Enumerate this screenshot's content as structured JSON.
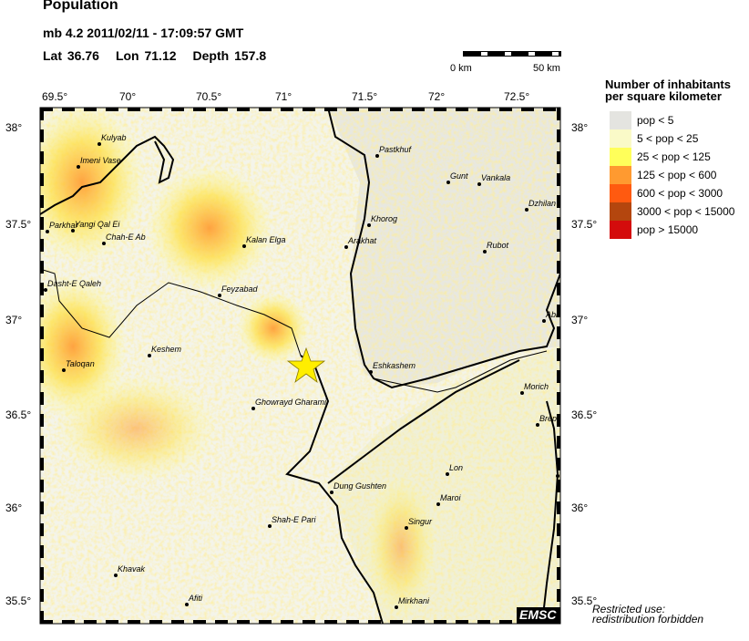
{
  "header": {
    "title": "Population",
    "event": "mb 4.2  2011/02/11 - 17:09:57 GMT",
    "lat": "Lat 36.76",
    "lon": "Lon  71.12",
    "depth": "Depth 157.8"
  },
  "scale_bar": {
    "start": "0 km",
    "end": "50 km"
  },
  "axes": {
    "lon_ticks": [
      "69.5°",
      "70°",
      "70.5°",
      "71°",
      "71.5°",
      "72°",
      "72.5°"
    ],
    "lat_ticks": [
      "38°",
      "37.5°",
      "37°",
      "36.5°",
      "36°",
      "35.5°"
    ]
  },
  "legend": {
    "title_line1": "Number of inhabitants",
    "title_line2": "per square kilometer",
    "items": [
      {
        "label": "pop < 5",
        "color": "#e4e4e0"
      },
      {
        "label": "5 < pop < 25",
        "color": "#fafac8"
      },
      {
        "label": "25 < pop < 125",
        "color": "#ffff5a"
      },
      {
        "label": "125 < pop < 600",
        "color": "#ff9a30"
      },
      {
        "label": "600 < pop < 3000",
        "color": "#ff5a10"
      },
      {
        "label": "3000 < pop < 15000",
        "color": "#b4460e"
      },
      {
        "label": "pop > 15000",
        "color": "#d40c0c"
      }
    ]
  },
  "cities": [
    "Kulyab",
    "Imeni Vase",
    "Parkhar",
    "Yangi Qal Ei",
    "Chah-E Ab",
    "Dasht-E Qaleh",
    "Taloqan",
    "Keshem",
    "Feyzabad",
    "Kalan Elga",
    "Ghowrayd Gharami",
    "Shah-E Pari",
    "Khavak",
    "Afiti",
    "Pastkhuf",
    "Khorog",
    "Arakhat",
    "Eshkashem",
    "Gunt",
    "Vankala",
    "Dzhilan",
    "Rubot",
    "Abi",
    "Morich",
    "Brep",
    "Lon",
    "Maroi",
    "Singur",
    "Dung Gushten",
    "Mirkhani"
  ],
  "epicenter": {
    "icon": "star-icon",
    "color": "#ffee00"
  },
  "logo": "EMSC",
  "notice_line1": "Restricted use:",
  "notice_line2": "redistribution forbidden"
}
